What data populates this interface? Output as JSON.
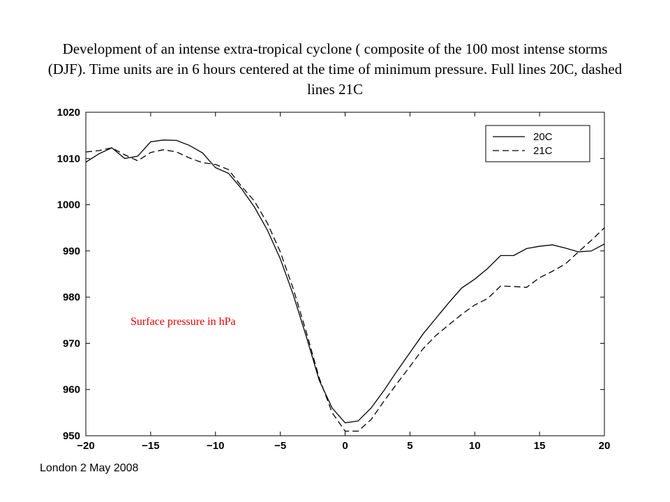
{
  "title": "Development of an intense extra-tropical cyclone ( composite of the 100 most intense storms (DJF). Time units are in 6 hours centered at the time of minimum pressure. Full lines 20C, dashed lines 21C",
  "footer": "London 2 May 2008",
  "colors": {
    "line": "#000000",
    "annotation": "#e00000",
    "axis": "#000000"
  },
  "chart_data": {
    "type": "line",
    "xlim": [
      -20,
      20
    ],
    "ylim": [
      950,
      1020
    ],
    "xticks": [
      -20,
      -15,
      -10,
      -5,
      0,
      5,
      10,
      15,
      20
    ],
    "yticks": [
      950,
      960,
      970,
      980,
      990,
      1000,
      1010,
      1020
    ],
    "xtick_labels": [
      "−20",
      "−15",
      "−10",
      "−5",
      "0",
      "5",
      "10",
      "15",
      "20"
    ],
    "ytick_labels": [
      "950",
      "960",
      "970",
      "980",
      "990",
      "1000",
      "1010",
      "1020"
    ],
    "grid": false,
    "legend": "top-right",
    "annotation": "Surface pressure in hPa",
    "x": [
      -20,
      -19,
      -18,
      -17,
      -16,
      -15,
      -14,
      -13,
      -12,
      -11,
      -10,
      -9,
      -8,
      -7,
      -6,
      -5,
      -4,
      -3,
      -2,
      -1,
      0,
      1,
      2,
      3,
      4,
      5,
      6,
      7,
      8,
      9,
      10,
      11,
      12,
      13,
      14,
      15,
      16,
      17,
      18,
      19,
      20
    ],
    "series": [
      {
        "name": "20C",
        "style": "solid",
        "values": [
          1009.2,
          1011.0,
          1012.3,
          1010.0,
          1010.5,
          1013.6,
          1014.0,
          1013.9,
          1012.8,
          1011.2,
          1008.0,
          1006.8,
          1003.5,
          999.5,
          994.5,
          988.3,
          980.5,
          971.5,
          962.0,
          956.0,
          952.8,
          953.2,
          956.0,
          959.8,
          964.0,
          968.0,
          972.0,
          975.4,
          978.8,
          982.0,
          983.9,
          986.2,
          989.0,
          989.0,
          990.5,
          991.0,
          991.3,
          990.6,
          989.8,
          990.0,
          991.5
        ]
      },
      {
        "name": "21C",
        "style": "dashed",
        "values": [
          1011.4,
          1011.7,
          1012.3,
          1010.8,
          1009.5,
          1011.3,
          1011.9,
          1011.4,
          1010.1,
          1009.1,
          1008.7,
          1007.6,
          1004.0,
          1000.8,
          996.0,
          989.8,
          981.8,
          972.5,
          962.5,
          955.0,
          951.0,
          951.0,
          953.5,
          957.5,
          961.3,
          965.0,
          968.8,
          971.7,
          974.0,
          976.3,
          978.3,
          979.7,
          982.4,
          982.3,
          982.1,
          984.2,
          985.6,
          987.2,
          989.8,
          992.3,
          995.0
        ]
      }
    ]
  }
}
